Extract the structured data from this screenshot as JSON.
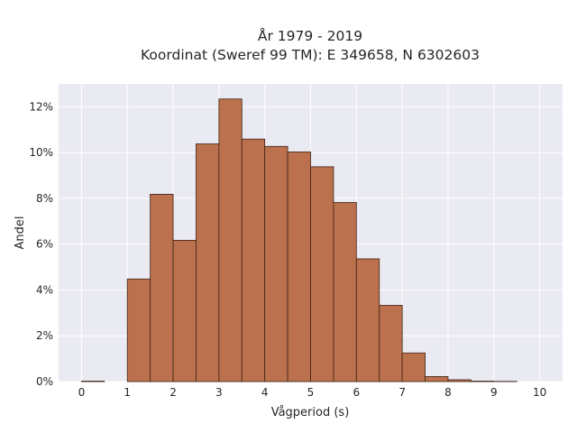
{
  "chart_data": {
    "type": "bar",
    "title_line1": "År 1979 - 2019",
    "title_line2": "Koordinat (Sweref 99 TM): E 349658, N 6302603",
    "xlabel": "Vågperiod (s)",
    "ylabel": "Andel",
    "xlim": [
      -0.5,
      10.5
    ],
    "ylim": [
      0,
      0.13
    ],
    "x_ticks": [
      0,
      1,
      2,
      3,
      4,
      5,
      6,
      7,
      8,
      9,
      10
    ],
    "y_ticks": [
      0,
      0.02,
      0.04,
      0.06,
      0.08,
      0.1,
      0.12
    ],
    "y_tick_labels": [
      "0%",
      "2%",
      "4%",
      "6%",
      "8%",
      "10%",
      "12%"
    ],
    "grid": true,
    "bin_width": 0.5,
    "bins": [
      {
        "start": 0.0,
        "value": 0.0002
      },
      {
        "start": 0.5,
        "value": 0.0
      },
      {
        "start": 1.0,
        "value": 0.0448
      },
      {
        "start": 1.5,
        "value": 0.0818
      },
      {
        "start": 2.0,
        "value": 0.0617
      },
      {
        "start": 2.5,
        "value": 0.1038
      },
      {
        "start": 3.0,
        "value": 0.1234
      },
      {
        "start": 3.5,
        "value": 0.1059
      },
      {
        "start": 4.0,
        "value": 0.1027
      },
      {
        "start": 4.5,
        "value": 0.1003
      },
      {
        "start": 5.0,
        "value": 0.0938
      },
      {
        "start": 5.5,
        "value": 0.0782
      },
      {
        "start": 6.0,
        "value": 0.0536
      },
      {
        "start": 6.5,
        "value": 0.0333
      },
      {
        "start": 7.0,
        "value": 0.0125
      },
      {
        "start": 7.5,
        "value": 0.0022
      },
      {
        "start": 8.0,
        "value": 0.0008
      },
      {
        "start": 8.5,
        "value": 0.0002
      },
      {
        "start": 9.0,
        "value": 0.0001
      },
      {
        "start": 9.5,
        "value": 0.0
      }
    ],
    "colors": {
      "bar_fill": "#b86a43",
      "bar_edge": "#3d2418",
      "plot_background": "#eaeaf2",
      "grid": "#ffffff"
    }
  }
}
